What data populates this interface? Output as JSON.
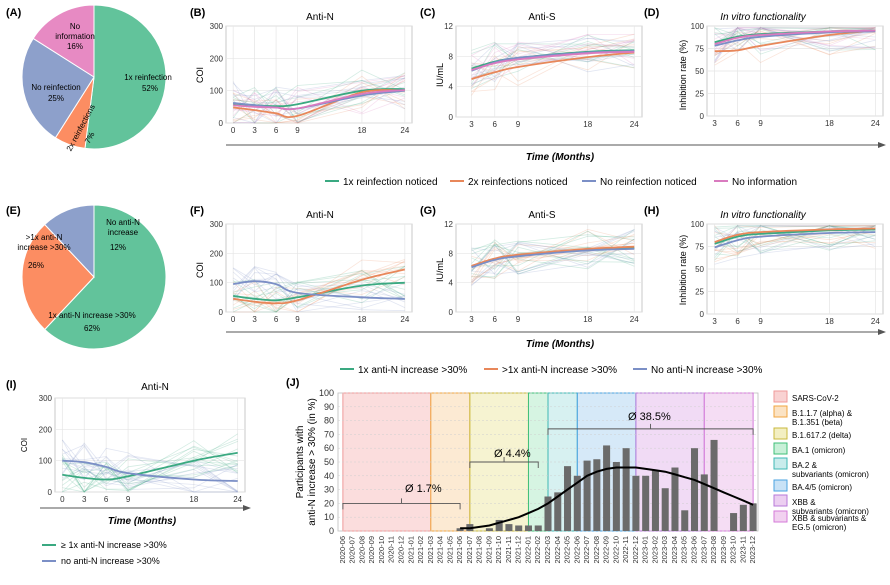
{
  "colors": {
    "green": "#3aa981",
    "orange": "#e8875a",
    "blue": "#7b8fc6",
    "pink": "#d97bbf",
    "pie_green": "#62c39b",
    "pie_orange": "#fc8d62",
    "pie_blue": "#8da0cb",
    "pie_pink": "#e78ac3",
    "bar": "#6b6b6b",
    "grid": "#e5e5e5",
    "panel_border": "#bdbdbd",
    "variant_fill": [
      "#f9d2d2",
      "#fbe3c4",
      "#f3efc2",
      "#c8f0d8",
      "#c9ecec",
      "#c8e2f6",
      "#eccff1",
      "#f2d1f0"
    ],
    "variant_edge": [
      "#ef9a9a",
      "#f0a640",
      "#c8b93c",
      "#3fbf78",
      "#3fb8b4",
      "#4aa3e0",
      "#b77ad9",
      "#d47ad9"
    ]
  },
  "chart_data": [
    {
      "panel": "(A)",
      "type": "pie",
      "labels": [
        "1x reinfection 52%",
        "2x reinfections 7%",
        "No reinfection 25%",
        "No information 16%"
      ],
      "values": [
        52,
        7,
        25,
        16
      ]
    },
    {
      "panel": "(B)",
      "type": "line",
      "title": "Anti-N",
      "ylabel": "COI",
      "x": [
        0,
        3,
        6,
        9,
        18,
        24
      ],
      "ylim": [
        0,
        300
      ],
      "yticks": [
        0,
        100,
        200,
        300
      ],
      "series": [
        {
          "name": "1x reinfection noticed",
          "values": [
            60,
            55,
            52,
            58,
            100,
            105
          ]
        },
        {
          "name": "2x reinfections noticed",
          "values": [
            48,
            40,
            30,
            22,
            95,
            100
          ]
        },
        {
          "name": "No reinfection noticed",
          "values": [
            62,
            55,
            48,
            45,
            85,
            100
          ]
        },
        {
          "name": "No information",
          "values": [
            55,
            50,
            48,
            45,
            90,
            102
          ]
        }
      ]
    },
    {
      "panel": "(C)",
      "type": "line",
      "title": "Anti-S",
      "ylabel": "IU/mL",
      "x": [
        3,
        6,
        9,
        18,
        24
      ],
      "ylim": [
        0,
        12
      ],
      "yticks": [
        0,
        4,
        8,
        12
      ],
      "series": [
        {
          "name": "1x reinfection noticed",
          "values": [
            6.4,
            7.3,
            7.8,
            8.6,
            8.8
          ]
        },
        {
          "name": "2x reinfections noticed",
          "values": [
            5.0,
            5.9,
            6.6,
            7.9,
            8.5
          ]
        },
        {
          "name": "No reinfection noticed",
          "values": [
            6.1,
            7.2,
            7.8,
            8.5,
            8.7
          ]
        },
        {
          "name": "No information",
          "values": [
            6.2,
            7.1,
            7.6,
            8.4,
            8.6
          ]
        }
      ]
    },
    {
      "panel": "(D)",
      "type": "line",
      "title": "In vitro functionality",
      "ylabel": "Inhibition rate (%)",
      "x": [
        3,
        6,
        9,
        18,
        24
      ],
      "ylim": [
        0,
        100
      ],
      "yticks": [
        0,
        25,
        50,
        75,
        100
      ],
      "series": [
        {
          "name": "1x reinfection noticed",
          "values": [
            82,
            88,
            91,
            94,
            95
          ]
        },
        {
          "name": "2x reinfections noticed",
          "values": [
            72,
            73,
            78,
            90,
            95
          ]
        },
        {
          "name": "No reinfection noticed",
          "values": [
            78,
            84,
            88,
            93,
            94
          ]
        },
        {
          "name": "No information",
          "values": [
            80,
            87,
            90,
            94,
            95
          ]
        }
      ]
    },
    {
      "panel": "(E)",
      "type": "pie",
      "labels": [
        "1x anti-N increase >30% 62%",
        ">1x anti-N increase >30% 26%",
        "No anti-N increase 12%"
      ],
      "values": [
        62,
        26,
        12
      ]
    },
    {
      "panel": "(F)",
      "type": "line",
      "title": "Anti-N",
      "ylabel": "COI",
      "x": [
        0,
        3,
        6,
        9,
        18,
        24
      ],
      "ylim": [
        0,
        300
      ],
      "yticks": [
        0,
        100,
        200,
        300
      ],
      "series": [
        {
          "name": "1x anti-N increase >30%",
          "values": [
            55,
            45,
            40,
            50,
            90,
            100
          ]
        },
        {
          "name": ">1x anti-N increase >30%",
          "values": [
            45,
            35,
            30,
            40,
            110,
            145
          ]
        },
        {
          "name": "No anti-N increase >30%",
          "values": [
            95,
            105,
            95,
            65,
            50,
            45
          ]
        }
      ]
    },
    {
      "panel": "(G)",
      "type": "line",
      "title": "Anti-S",
      "ylabel": "IU/mL",
      "x": [
        3,
        6,
        9,
        18,
        24
      ],
      "ylim": [
        0,
        12
      ],
      "yticks": [
        0,
        4,
        8,
        12
      ],
      "series": [
        {
          "name": "1x anti-N increase >30%",
          "values": [
            6.2,
            7.2,
            7.7,
            8.5,
            8.7
          ]
        },
        {
          "name": ">1x anti-N increase >30%",
          "values": [
            6.3,
            7.3,
            7.8,
            8.6,
            8.9
          ]
        },
        {
          "name": "No anti-N increase >30%",
          "values": [
            6.1,
            7.1,
            7.6,
            8.4,
            8.6
          ]
        }
      ]
    },
    {
      "panel": "(H)",
      "type": "line",
      "title": "In vitro functionality",
      "ylabel": "Inhibition rate (%)",
      "x": [
        3,
        6,
        9,
        18,
        24
      ],
      "ylim": [
        0,
        100
      ],
      "yticks": [
        0,
        25,
        50,
        75,
        100
      ],
      "series": [
        {
          "name": "1x anti-N increase >30%",
          "values": [
            78,
            86,
            89,
            93,
            94
          ]
        },
        {
          "name": ">1x anti-N increase >30%",
          "values": [
            80,
            88,
            91,
            94,
            95
          ]
        },
        {
          "name": "No anti-N increase >30%",
          "values": [
            74,
            82,
            86,
            90,
            91
          ]
        }
      ]
    },
    {
      "panel": "(I)",
      "type": "line",
      "title": "Anti-N",
      "ylabel": "COI",
      "x": [
        0,
        3,
        6,
        9,
        18,
        24
      ],
      "ylim": [
        0,
        300
      ],
      "yticks": [
        0,
        100,
        200,
        300
      ],
      "series": [
        {
          "name": "≥ 1x anti-N increase >30%",
          "values": [
            55,
            45,
            40,
            50,
            100,
            125
          ]
        },
        {
          "name": "no anti-N increase >30%",
          "values": [
            100,
            95,
            80,
            60,
            40,
            35
          ]
        }
      ]
    },
    {
      "panel": "(J)",
      "type": "bar",
      "ylabel": "Participants with anti-N increase > 30% (in %)",
      "ylim": [
        0,
        100
      ],
      "yticks": [
        0,
        10,
        20,
        30,
        40,
        50,
        60,
        70,
        80,
        90,
        100
      ],
      "categories": [
        "2020-06",
        "2020-07",
        "2020-08",
        "2020-09",
        "2020-10",
        "2020-11",
        "2020-12",
        "2021-01",
        "2021-02",
        "2021-03",
        "2021-04",
        "2021-05",
        "2021-06",
        "2021-07",
        "2021-08",
        "2021-09",
        "2021-10",
        "2021-11",
        "2021-12",
        "2022-01",
        "2022-02",
        "2022-03",
        "2022-04",
        "2022-05",
        "2022-06",
        "2022-07",
        "2022-08",
        "2022-09",
        "2022-10",
        "2022-11",
        "2022-12",
        "2023-01",
        "2023-02",
        "2023-03",
        "2023-04",
        "2023-05",
        "2023-06",
        "2023-07",
        "2023-08",
        "2023-09",
        "2023-10",
        "2023-11",
        "2023-12"
      ],
      "values": [
        0,
        0,
        0,
        0,
        0,
        0,
        0,
        0,
        0,
        0,
        0,
        0,
        2,
        5,
        0,
        2,
        8,
        5,
        4,
        4,
        4,
        25,
        28,
        47,
        40,
        51,
        52,
        62,
        50,
        60,
        40,
        40,
        44,
        31,
        46,
        15,
        60,
        41,
        66,
        0,
        13,
        19,
        20
      ],
      "trend": [
        null,
        null,
        null,
        null,
        null,
        null,
        null,
        null,
        null,
        null,
        null,
        null,
        2,
        2,
        3,
        4,
        6,
        8,
        10,
        13,
        16,
        20,
        25,
        30,
        35,
        40,
        43,
        45,
        46,
        46,
        46,
        45,
        44,
        43,
        41,
        39,
        37,
        34,
        31,
        28,
        25,
        22,
        19
      ],
      "annotations": [
        "Ø 1.7%",
        "Ø 4.4%",
        "Ø 38.5%"
      ],
      "variant_bands": [
        {
          "label": "SARS-CoV-2",
          "start": "2020-06",
          "end": "2021-03"
        },
        {
          "label": "B.1.1.7 (alpha) & B.1.351 (beta)",
          "start": "2021-03",
          "end": "2021-07"
        },
        {
          "label": "B.1.617.2 (delta)",
          "start": "2021-07",
          "end": "2022-01"
        },
        {
          "label": "BA.1 (omicron)",
          "start": "2022-01",
          "end": "2022-03"
        },
        {
          "label": "BA.2 & subvariants (omicron)",
          "start": "2022-03",
          "end": "2022-06"
        },
        {
          "label": "BA.4/5 (omicron)",
          "start": "2022-06",
          "end": "2022-12"
        },
        {
          "label": "XBB & subvariants (omicron)",
          "start": "2022-12",
          "end": "2023-07"
        },
        {
          "label": "XBB & subvariants & EG.5 (omicron)",
          "start": "2023-07",
          "end": "2023-12"
        }
      ]
    }
  ],
  "text": {
    "panel_A": "(A)",
    "panel_B": "(B)",
    "panel_C": "(C)",
    "panel_D": "(D)",
    "panel_E": "(E)",
    "panel_F": "(F)",
    "panel_G": "(G)",
    "panel_H": "(H)",
    "panel_I": "(I)",
    "panel_J": "(J)",
    "pieA_1": "1x reinfection",
    "pieA_1p": "52%",
    "pieA_2": "2x reinfections",
    "pieA_2p": "7%",
    "pieA_3": "No reinfection",
    "pieA_3p": "25%",
    "pieA_4a": "No",
    "pieA_4b": "information",
    "pieA_4p": "16%",
    "pieE_1": "1x anti-N increase >30%",
    "pieE_1p": "62%",
    "pieE_2a": ">1x anti-N",
    "pieE_2b": "increase >30%",
    "pieE_2p": "26%",
    "pieE_3a": "No anti-N",
    "pieE_3b": "increase",
    "pieE_3p": "12%",
    "time_axis": "Time (Months)",
    "legend1": [
      "1x reinfection noticed",
      "2x reinfections noticed",
      "No reinfection noticed",
      "No information"
    ],
    "legend2": [
      "1x anti-N increase >30%",
      ">1x anti-N increase >30%",
      "No anti-N increase >30%"
    ],
    "legendI": [
      "≥ 1x anti-N increase >30%",
      "no anti-N increase >30%"
    ],
    "j_ylabel_1": "Participants with",
    "j_ylabel_2": "anti-N increase > 30% (in %)",
    "j_legend": [
      "SARS-CoV-2",
      "B.1.1.7 (alpha) &",
      "B.1.351 (beta)",
      "B.1.617.2 (delta)",
      "BA.1 (omicron)",
      "BA.2 &",
      "subvariants (omicron)",
      "BA.4/5 (omicron)",
      "XBB &",
      "subvariants (omicron)",
      "XBB & subvariants &",
      "EG.5 (omicron)"
    ]
  }
}
